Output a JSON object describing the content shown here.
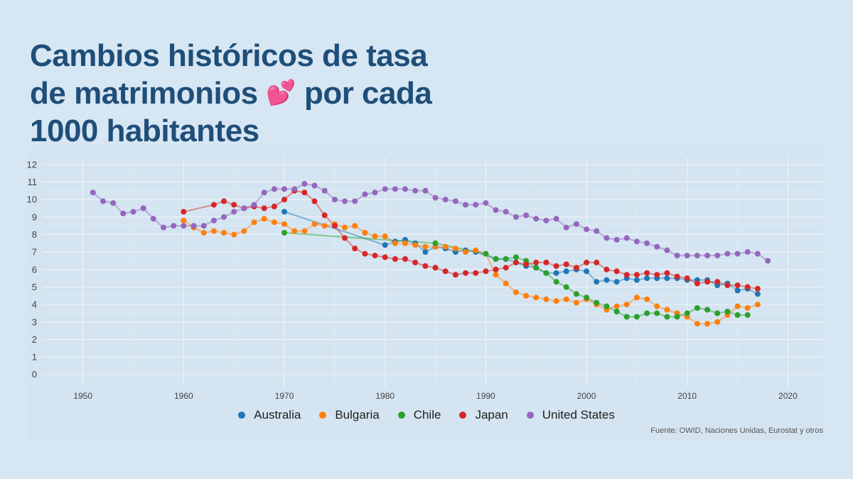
{
  "title": {
    "line1": "Cambios históricos de tasa",
    "line2_before": "de matrimonios",
    "line2_emoji": "💕",
    "line2_after": "por cada",
    "line3": "1000 habitantes"
  },
  "source": "Fuente: OWID, Naciones Unidas, Eurostat y otros",
  "chart_data": {
    "type": "line",
    "title": "Cambios históricos de tasa de matrimonios 💕 por cada 1000 habitantes",
    "xlabel": "",
    "ylabel": "",
    "xlim": [
      1946,
      2023.5
    ],
    "ylim": [
      -0.7,
      12.4
    ],
    "x_ticks": [
      1950,
      1960,
      1970,
      1980,
      1990,
      2000,
      2010,
      2020
    ],
    "y_ticks": [
      0,
      1,
      2,
      3,
      4,
      5,
      6,
      7,
      8,
      9,
      10,
      11,
      12
    ],
    "grid": true,
    "legend_position": "bottom",
    "series": [
      {
        "name": "Australia",
        "color": "#1f77b4",
        "points": [
          [
            1970,
            9.3
          ],
          [
            1980,
            7.4
          ],
          [
            1981,
            7.6
          ],
          [
            1982,
            7.7
          ],
          [
            1983,
            7.5
          ],
          [
            1984,
            7.0
          ],
          [
            1985,
            7.3
          ],
          [
            1986,
            7.2
          ],
          [
            1987,
            7.0
          ],
          [
            1988,
            7.1
          ],
          [
            1989,
            7.0
          ],
          [
            1991,
            6.6
          ],
          [
            1992,
            6.6
          ],
          [
            1993,
            6.4
          ],
          [
            1994,
            6.2
          ],
          [
            1995,
            6.1
          ],
          [
            1996,
            5.8
          ],
          [
            1997,
            5.8
          ],
          [
            1998,
            5.9
          ],
          [
            1999,
            6.0
          ],
          [
            2000,
            5.9
          ],
          [
            2001,
            5.3
          ],
          [
            2002,
            5.4
          ],
          [
            2003,
            5.3
          ],
          [
            2004,
            5.5
          ],
          [
            2005,
            5.4
          ],
          [
            2006,
            5.5
          ],
          [
            2007,
            5.5
          ],
          [
            2008,
            5.5
          ],
          [
            2009,
            5.5
          ],
          [
            2010,
            5.4
          ],
          [
            2011,
            5.4
          ],
          [
            2012,
            5.4
          ],
          [
            2013,
            5.1
          ],
          [
            2014,
            5.2
          ],
          [
            2015,
            4.8
          ],
          [
            2016,
            4.9
          ],
          [
            2017,
            4.6
          ]
        ]
      },
      {
        "name": "Bulgaria",
        "color": "#ff7f0e",
        "points": [
          [
            1960,
            8.8
          ],
          [
            1961,
            8.4
          ],
          [
            1962,
            8.1
          ],
          [
            1963,
            8.2
          ],
          [
            1964,
            8.1
          ],
          [
            1965,
            8.0
          ],
          [
            1966,
            8.2
          ],
          [
            1967,
            8.7
          ],
          [
            1968,
            8.9
          ],
          [
            1969,
            8.7
          ],
          [
            1970,
            8.6
          ],
          [
            1971,
            8.2
          ],
          [
            1972,
            8.2
          ],
          [
            1973,
            8.6
          ],
          [
            1974,
            8.5
          ],
          [
            1975,
            8.6
          ],
          [
            1976,
            8.4
          ],
          [
            1977,
            8.5
          ],
          [
            1978,
            8.1
          ],
          [
            1979,
            7.9
          ],
          [
            1980,
            7.9
          ],
          [
            1981,
            7.5
          ],
          [
            1982,
            7.5
          ],
          [
            1983,
            7.4
          ],
          [
            1984,
            7.3
          ],
          [
            1985,
            7.3
          ],
          [
            1986,
            7.3
          ],
          [
            1987,
            7.2
          ],
          [
            1988,
            7.0
          ],
          [
            1989,
            7.1
          ],
          [
            1990,
            6.9
          ],
          [
            1991,
            5.7
          ],
          [
            1992,
            5.2
          ],
          [
            1993,
            4.7
          ],
          [
            1994,
            4.5
          ],
          [
            1995,
            4.4
          ],
          [
            1996,
            4.3
          ],
          [
            1997,
            4.2
          ],
          [
            1998,
            4.3
          ],
          [
            1999,
            4.1
          ],
          [
            2000,
            4.3
          ],
          [
            2001,
            4.0
          ],
          [
            2002,
            3.7
          ],
          [
            2003,
            3.9
          ],
          [
            2004,
            4.0
          ],
          [
            2005,
            4.4
          ],
          [
            2006,
            4.3
          ],
          [
            2007,
            3.9
          ],
          [
            2008,
            3.7
          ],
          [
            2009,
            3.5
          ],
          [
            2010,
            3.3
          ],
          [
            2011,
            2.9
          ],
          [
            2012,
            2.9
          ],
          [
            2013,
            3.0
          ],
          [
            2014,
            3.4
          ],
          [
            2015,
            3.9
          ],
          [
            2016,
            3.8
          ],
          [
            2017,
            4.0
          ]
        ]
      },
      {
        "name": "Chile",
        "color": "#2ca02c",
        "points": [
          [
            1970,
            8.1
          ],
          [
            1985,
            7.5
          ],
          [
            1990,
            6.9
          ],
          [
            1991,
            6.6
          ],
          [
            1992,
            6.6
          ],
          [
            1993,
            6.7
          ],
          [
            1994,
            6.5
          ],
          [
            1995,
            6.1
          ],
          [
            1996,
            5.8
          ],
          [
            1997,
            5.3
          ],
          [
            1998,
            5.0
          ],
          [
            1999,
            4.6
          ],
          [
            2000,
            4.4
          ],
          [
            2001,
            4.1
          ],
          [
            2002,
            3.9
          ],
          [
            2003,
            3.6
          ],
          [
            2004,
            3.3
          ],
          [
            2005,
            3.3
          ],
          [
            2006,
            3.5
          ],
          [
            2007,
            3.5
          ],
          [
            2008,
            3.3
          ],
          [
            2009,
            3.3
          ],
          [
            2010,
            3.5
          ],
          [
            2011,
            3.8
          ],
          [
            2012,
            3.7
          ],
          [
            2013,
            3.5
          ],
          [
            2014,
            3.6
          ],
          [
            2015,
            3.4
          ],
          [
            2016,
            3.4
          ]
        ]
      },
      {
        "name": "Japan",
        "color": "#d62728",
        "points": [
          [
            1960,
            9.3
          ],
          [
            1963,
            9.7
          ],
          [
            1964,
            9.9
          ],
          [
            1965,
            9.7
          ],
          [
            1966,
            9.5
          ],
          [
            1967,
            9.6
          ],
          [
            1968,
            9.5
          ],
          [
            1969,
            9.6
          ],
          [
            1970,
            10.0
          ],
          [
            1971,
            10.5
          ],
          [
            1972,
            10.4
          ],
          [
            1973,
            9.9
          ],
          [
            1974,
            9.1
          ],
          [
            1975,
            8.5
          ],
          [
            1976,
            7.8
          ],
          [
            1977,
            7.2
          ],
          [
            1978,
            6.9
          ],
          [
            1979,
            6.8
          ],
          [
            1980,
            6.7
          ],
          [
            1981,
            6.6
          ],
          [
            1982,
            6.6
          ],
          [
            1983,
            6.4
          ],
          [
            1984,
            6.2
          ],
          [
            1985,
            6.1
          ],
          [
            1986,
            5.9
          ],
          [
            1987,
            5.7
          ],
          [
            1988,
            5.8
          ],
          [
            1989,
            5.8
          ],
          [
            1990,
            5.9
          ],
          [
            1991,
            6.0
          ],
          [
            1992,
            6.1
          ],
          [
            1993,
            6.4
          ],
          [
            1994,
            6.3
          ],
          [
            1995,
            6.4
          ],
          [
            1996,
            6.4
          ],
          [
            1997,
            6.2
          ],
          [
            1998,
            6.3
          ],
          [
            1999,
            6.1
          ],
          [
            2000,
            6.4
          ],
          [
            2001,
            6.4
          ],
          [
            2002,
            6.0
          ],
          [
            2003,
            5.9
          ],
          [
            2004,
            5.7
          ],
          [
            2005,
            5.7
          ],
          [
            2006,
            5.8
          ],
          [
            2007,
            5.7
          ],
          [
            2008,
            5.8
          ],
          [
            2009,
            5.6
          ],
          [
            2010,
            5.5
          ],
          [
            2011,
            5.2
          ],
          [
            2012,
            5.3
          ],
          [
            2013,
            5.3
          ],
          [
            2014,
            5.1
          ],
          [
            2015,
            5.1
          ],
          [
            2016,
            5.0
          ],
          [
            2017,
            4.9
          ]
        ]
      },
      {
        "name": "United States",
        "color": "#9467bd",
        "points": [
          [
            1951,
            10.4
          ],
          [
            1952,
            9.9
          ],
          [
            1953,
            9.8
          ],
          [
            1954,
            9.2
          ],
          [
            1955,
            9.3
          ],
          [
            1956,
            9.5
          ],
          [
            1957,
            8.9
          ],
          [
            1958,
            8.4
          ],
          [
            1959,
            8.5
          ],
          [
            1960,
            8.5
          ],
          [
            1961,
            8.5
          ],
          [
            1962,
            8.5
          ],
          [
            1963,
            8.8
          ],
          [
            1964,
            9.0
          ],
          [
            1965,
            9.3
          ],
          [
            1966,
            9.5
          ],
          [
            1967,
            9.7
          ],
          [
            1968,
            10.4
          ],
          [
            1969,
            10.6
          ],
          [
            1970,
            10.6
          ],
          [
            1971,
            10.6
          ],
          [
            1972,
            10.9
          ],
          [
            1973,
            10.8
          ],
          [
            1974,
            10.5
          ],
          [
            1975,
            10.0
          ],
          [
            1976,
            9.9
          ],
          [
            1977,
            9.9
          ],
          [
            1978,
            10.3
          ],
          [
            1979,
            10.4
          ],
          [
            1980,
            10.6
          ],
          [
            1981,
            10.6
          ],
          [
            1982,
            10.6
          ],
          [
            1983,
            10.5
          ],
          [
            1984,
            10.5
          ],
          [
            1985,
            10.1
          ],
          [
            1986,
            10.0
          ],
          [
            1987,
            9.9
          ],
          [
            1988,
            9.7
          ],
          [
            1989,
            9.7
          ],
          [
            1990,
            9.8
          ],
          [
            1991,
            9.4
          ],
          [
            1992,
            9.3
          ],
          [
            1993,
            9.0
          ],
          [
            1994,
            9.1
          ],
          [
            1995,
            8.9
          ],
          [
            1996,
            8.8
          ],
          [
            1997,
            8.9
          ],
          [
            1998,
            8.4
          ],
          [
            1999,
            8.6
          ],
          [
            2000,
            8.3
          ],
          [
            2001,
            8.2
          ],
          [
            2002,
            7.8
          ],
          [
            2003,
            7.7
          ],
          [
            2004,
            7.8
          ],
          [
            2005,
            7.6
          ],
          [
            2006,
            7.5
          ],
          [
            2007,
            7.3
          ],
          [
            2008,
            7.1
          ],
          [
            2009,
            6.8
          ],
          [
            2010,
            6.8
          ],
          [
            2011,
            6.8
          ],
          [
            2012,
            6.8
          ],
          [
            2013,
            6.8
          ],
          [
            2014,
            6.9
          ],
          [
            2015,
            6.9
          ],
          [
            2016,
            7.0
          ],
          [
            2017,
            6.9
          ],
          [
            2018,
            6.5
          ]
        ]
      }
    ]
  }
}
